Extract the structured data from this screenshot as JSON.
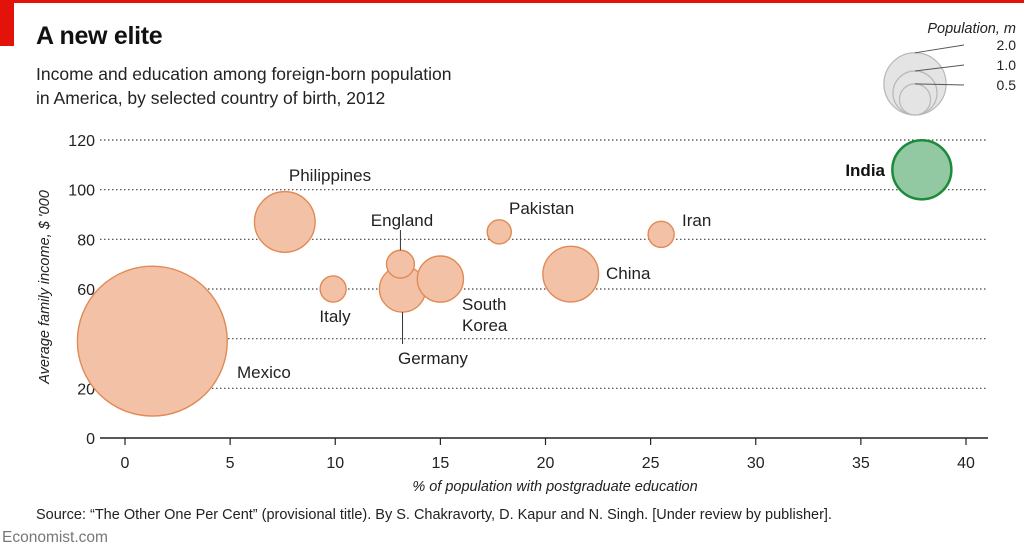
{
  "header": {
    "title": "A new elite",
    "subtitle_line1": "Income and education among foreign-born population",
    "subtitle_line2": "in America, by selected country of birth, 2012"
  },
  "footer": {
    "source": "Source: “The Other One Per Cent” (provisional title). By S. Chakravorty, D. Kapur and N. Singh. [Under review by publisher].",
    "brand": "Economist.com"
  },
  "colors": {
    "bubble_fill": "#f3c2a6",
    "bubble_stroke": "#e08a55",
    "highlight_fill": "#93c9a2",
    "highlight_stroke": "#1d8a3c",
    "legend_fill": "#e4e4e4",
    "legend_stroke": "#b8b8b8",
    "grid": "#444444",
    "accent": "#e3120b"
  },
  "chart_data": {
    "type": "scatter",
    "variant": "bubble",
    "xlabel": "% of population with postgraduate education",
    "ylabel": "Average family income, $ '000",
    "xlim": [
      0,
      40
    ],
    "ylim": [
      0,
      120
    ],
    "xticks": [
      0,
      5,
      10,
      15,
      20,
      25,
      30,
      35,
      40
    ],
    "yticks": [
      0,
      20,
      40,
      60,
      80,
      100,
      120
    ],
    "grid": "horizontal dotted",
    "size_legend": {
      "title": "Population, m",
      "values": [
        2.0,
        1.0,
        0.5
      ],
      "labels": [
        "2.0",
        "1.0",
        "0.5"
      ],
      "placement": "top-right"
    },
    "points": [
      {
        "label": "Mexico",
        "x": 1.3,
        "y": 39,
        "population_m": 11.6
      },
      {
        "label": "Philippines",
        "x": 7.6,
        "y": 87,
        "population_m": 1.9
      },
      {
        "label": "Italy",
        "x": 9.9,
        "y": 60,
        "population_m": 0.35
      },
      {
        "label": "England",
        "x": 13.1,
        "y": 70,
        "population_m": 0.4
      },
      {
        "label": "Germany",
        "x": 13.2,
        "y": 60,
        "population_m": 1.1
      },
      {
        "label": "South Korea",
        "x": 15.0,
        "y": 64,
        "population_m": 1.1
      },
      {
        "label": "Pakistan",
        "x": 17.8,
        "y": 83,
        "population_m": 0.3
      },
      {
        "label": "China",
        "x": 21.2,
        "y": 66,
        "population_m": 1.6
      },
      {
        "label": "Iran",
        "x": 25.5,
        "y": 82,
        "population_m": 0.35
      },
      {
        "label": "India",
        "x": 37.9,
        "y": 108,
        "population_m": 1.8,
        "highlight": true
      }
    ]
  }
}
